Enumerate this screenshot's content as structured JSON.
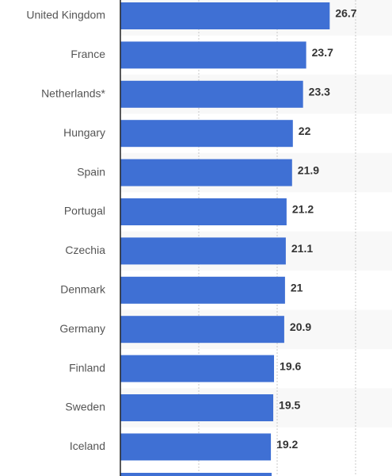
{
  "chart_data": {
    "type": "bar",
    "orientation": "horizontal",
    "categories": [
      "United Kingdom",
      "France",
      "Netherlands*",
      "Hungary",
      "Spain",
      "Portugal",
      "Czechia",
      "Denmark",
      "Germany",
      "Finland",
      "Sweden",
      "Iceland"
    ],
    "values": [
      26.7,
      23.7,
      23.3,
      22,
      21.9,
      21.2,
      21.1,
      21,
      20.9,
      19.6,
      19.5,
      19.2
    ],
    "color": "#3f70d4",
    "xlim": [
      0,
      30
    ],
    "xticks": [
      0,
      10,
      20,
      30
    ],
    "grid": true
  }
}
